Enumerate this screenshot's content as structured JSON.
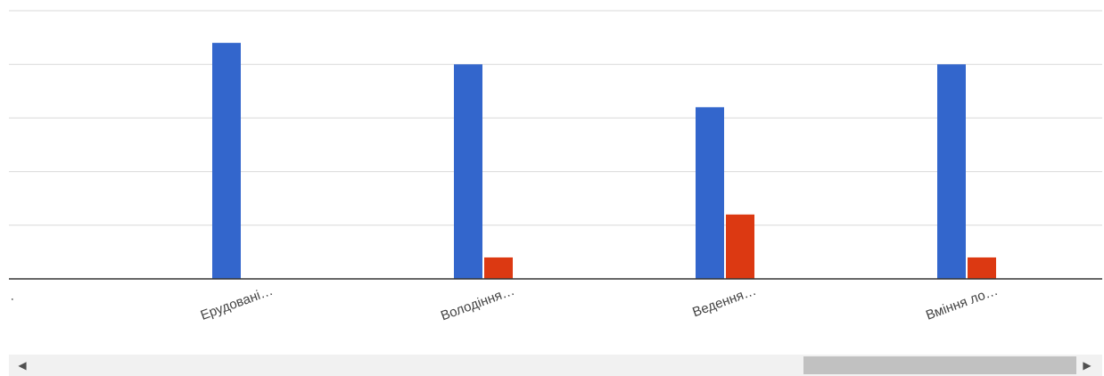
{
  "chart_data": {
    "type": "bar",
    "categories": [
      ".",
      "Ерудовані…",
      "Володіння…",
      "Ведення…",
      "Вміння ло…"
    ],
    "series": [
      {
        "color": "#3366cc",
        "values": [
          0,
          22,
          20,
          16,
          20
        ]
      },
      {
        "color": "#dc3912",
        "values": [
          0,
          0,
          2,
          6,
          2
        ]
      }
    ],
    "ylim": [
      0,
      25
    ],
    "grid": true,
    "legend": "none"
  },
  "scrollbar": {
    "left_arrow_icon": "triangle-left-icon",
    "right_arrow_icon": "triangle-right-icon"
  }
}
